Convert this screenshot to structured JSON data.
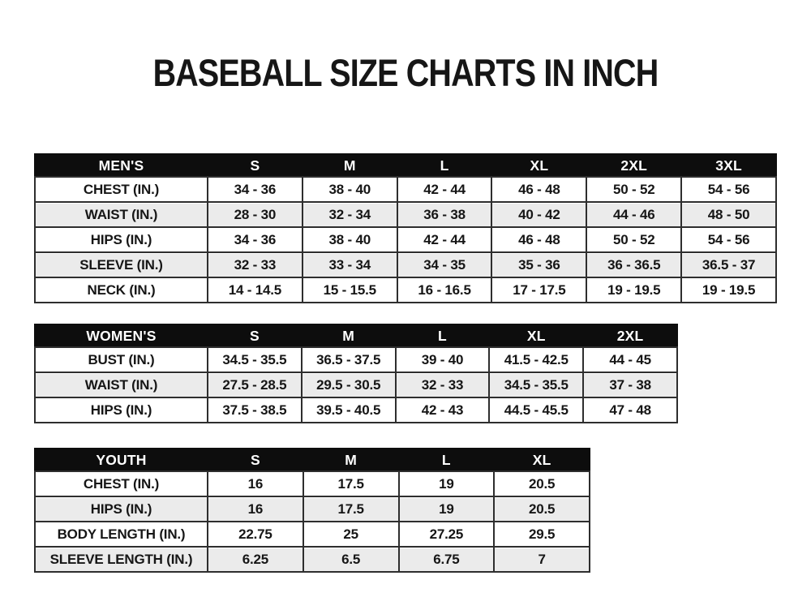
{
  "page": {
    "title": "BASEBALL SIZE CHARTS IN INCH"
  },
  "colors": {
    "page_bg": "#ffffff",
    "header_bg": "#0d0d0d",
    "header_text": "#ffffff",
    "row_bg": "#ffffff",
    "row_alt_bg": "#ebebeb",
    "border": "#2e2e2e",
    "text": "#161616"
  },
  "tables": [
    {
      "id": "mens",
      "header": [
        "MEN'S",
        "S",
        "M",
        "L",
        "XL",
        "2XL",
        "3XL"
      ],
      "rows": [
        [
          "CHEST (IN.)",
          "34 - 36",
          "38 - 40",
          "42 - 44",
          "46 - 48",
          "50 - 52",
          "54 - 56"
        ],
        [
          "WAIST (IN.)",
          "28 - 30",
          "32 - 34",
          "36 - 38",
          "40 - 42",
          "44 - 46",
          "48 - 50"
        ],
        [
          "HIPS (IN.)",
          "34 - 36",
          "38 - 40",
          "42 - 44",
          "46 - 48",
          "50 - 52",
          "54 - 56"
        ],
        [
          "SLEEVE (IN.)",
          "32 - 33",
          "33 - 34",
          "34 - 35",
          "35 - 36",
          "36 - 36.5",
          "36.5 - 37"
        ],
        [
          "NECK (IN.)",
          "14 - 14.5",
          "15 - 15.5",
          "16 - 16.5",
          "17 - 17.5",
          "19 - 19.5",
          "19 - 19.5"
        ]
      ]
    },
    {
      "id": "womens",
      "header": [
        "WOMEN'S",
        "S",
        "M",
        "L",
        "XL",
        "2XL"
      ],
      "rows": [
        [
          "BUST (IN.)",
          "34.5 - 35.5",
          "36.5 - 37.5",
          "39 - 40",
          "41.5 - 42.5",
          "44 - 45"
        ],
        [
          "WAIST (IN.)",
          "27.5 - 28.5",
          "29.5 - 30.5",
          "32 - 33",
          "34.5 - 35.5",
          "37 - 38"
        ],
        [
          "HIPS (IN.)",
          "37.5 - 38.5",
          "39.5 - 40.5",
          "42 - 43",
          "44.5 - 45.5",
          "47 - 48"
        ]
      ]
    },
    {
      "id": "youth",
      "header": [
        "YOUTH",
        "S",
        "M",
        "L",
        "XL"
      ],
      "rows": [
        [
          "CHEST (IN.)",
          "16",
          "17.5",
          "19",
          "20.5"
        ],
        [
          "HIPS (IN.)",
          "16",
          "17.5",
          "19",
          "20.5"
        ],
        [
          "BODY LENGTH (IN.)",
          "22.75",
          "25",
          "27.25",
          "29.5"
        ],
        [
          "SLEEVE LENGTH (IN.)",
          "6.25",
          "6.5",
          "6.75",
          "7"
        ]
      ]
    }
  ]
}
